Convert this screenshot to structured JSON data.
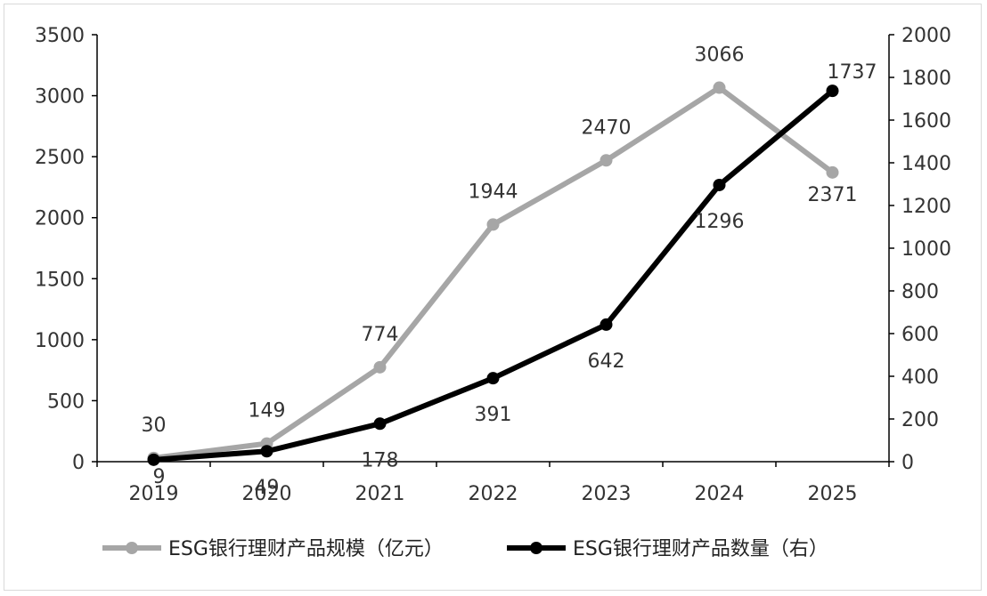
{
  "chart_data": {
    "type": "line",
    "categories": [
      "2019",
      "2020",
      "2021",
      "2022",
      "2023",
      "2024",
      "2025"
    ],
    "left_axis": {
      "ticks": [
        "0",
        "500",
        "1000",
        "1500",
        "2000",
        "2500",
        "3000",
        "3500"
      ],
      "ylim": [
        0,
        3500
      ]
    },
    "right_axis": {
      "ticks": [
        "0",
        "200",
        "400",
        "600",
        "800",
        "1000",
        "1200",
        "1400",
        "1600",
        "1800",
        "2000"
      ],
      "ylim": [
        0,
        2000
      ]
    },
    "series": [
      {
        "name": "ESG银行理财产品规模（亿元）",
        "axis": "left",
        "color": "#a6a6a6",
        "values": [
          30,
          149,
          774,
          1944,
          2470,
          3066,
          2371
        ],
        "labels": [
          "30",
          "149",
          "774",
          "1944",
          "2470",
          "3066",
          "2371"
        ]
      },
      {
        "name": "ESG银行理财产品数量（右）",
        "axis": "right",
        "color": "#000000",
        "values": [
          9,
          49,
          178,
          391,
          642,
          1296,
          1737
        ],
        "labels": [
          "9",
          "49",
          "178",
          "391",
          "642",
          "1296",
          "1737"
        ]
      }
    ],
    "legend_position": "bottom",
    "grid": false
  }
}
